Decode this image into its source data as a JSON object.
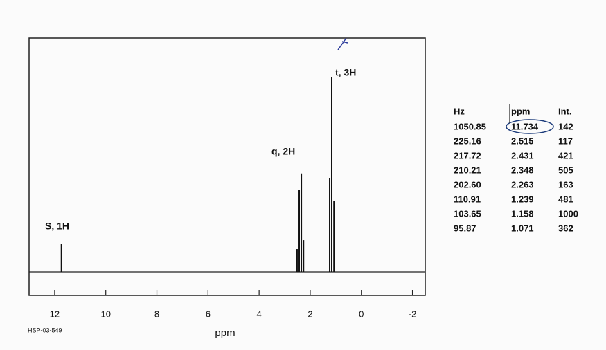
{
  "chart_data": {
    "type": "nmr",
    "x_label": "ppm",
    "xlim": [
      13,
      -2.5
    ],
    "xticks": [
      12,
      10,
      8,
      6,
      4,
      2,
      0,
      -2
    ],
    "ylim": [
      0,
      1200
    ],
    "color": "#111111",
    "annotations": [
      "S, 1H",
      "q, 2H",
      "t, 3H"
    ],
    "footer": "HSP-03-549",
    "peak_table": {
      "headers": [
        "Hz",
        "ppm",
        "Int."
      ],
      "rows": [
        [
          "1050.85",
          11.734,
          142
        ],
        [
          "225.16",
          2.515,
          117
        ],
        [
          "217.72",
          2.431,
          421
        ],
        [
          "210.21",
          2.348,
          505
        ],
        [
          "202.60",
          2.263,
          163
        ],
        [
          "110.91",
          1.239,
          481
        ],
        [
          "103.65",
          1.158,
          1000
        ],
        [
          "95.87",
          1.071,
          362
        ]
      ]
    }
  }
}
